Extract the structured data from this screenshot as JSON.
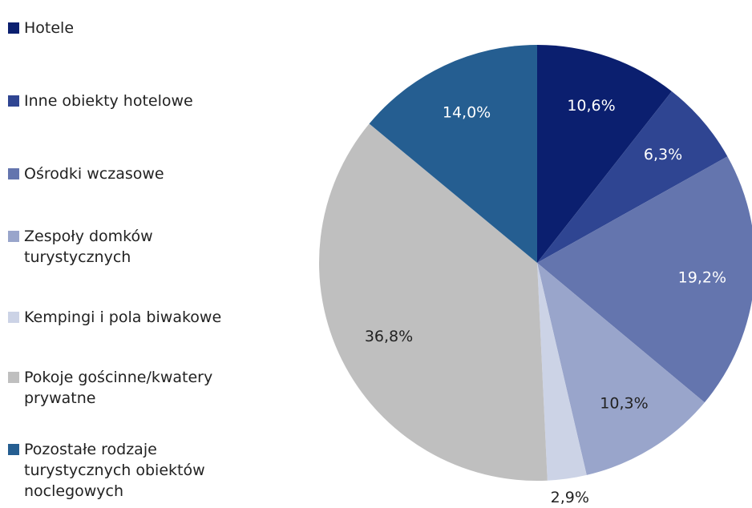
{
  "chart_data": {
    "type": "pie",
    "categories": [
      "Hotele",
      "Inne obiekty hotelowe",
      "Ośrodki wczasowe",
      "Zespoły domków turystycznych",
      "Kempingi i pola biwakowe",
      "Pokoje gościnne/kwatery prywatne",
      "Pozostałe rodzaje turystycznych obiektów noclegowych"
    ],
    "values": [
      10.6,
      6.3,
      19.2,
      10.3,
      2.9,
      36.8,
      14.0
    ],
    "value_labels": [
      "10,6%",
      "6,3%",
      "19,2%",
      "10,3%",
      "2,9%",
      "36,8%",
      "14,0%"
    ],
    "colors": [
      "#0b1f6f",
      "#2f4592",
      "#6475ae",
      "#99a5cb",
      "#ccd3e6",
      "#bfbfbf",
      "#255e91"
    ],
    "legend": "left"
  }
}
